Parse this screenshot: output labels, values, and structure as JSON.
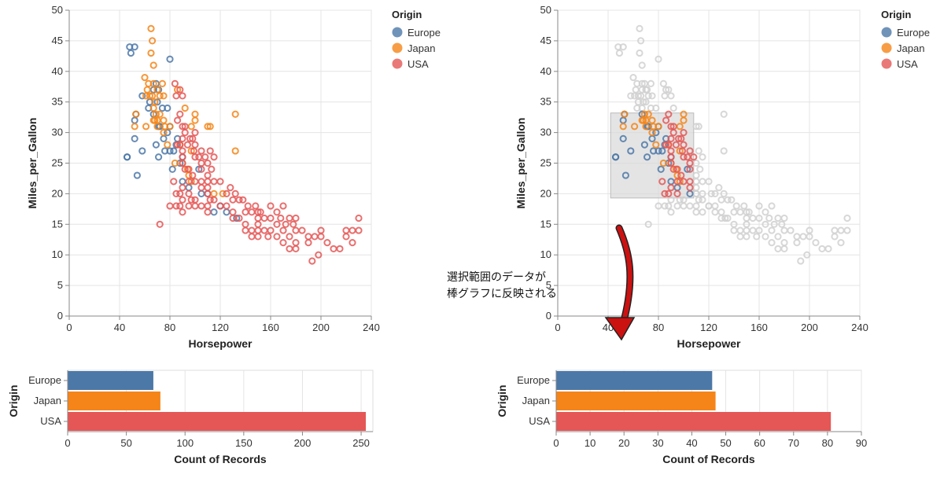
{
  "colors": {
    "Europe": "#4c78a8",
    "Japan": "#f58518",
    "USA": "#e45756",
    "unselected": "#d0d0d0",
    "selection_brush": "#d8d8d8",
    "arrow": "#cc1111"
  },
  "legend": {
    "title": "Origin",
    "items": [
      "Europe",
      "Japan",
      "USA"
    ]
  },
  "annotation": {
    "line1": "選択範囲のデータが",
    "line2": "棒グラフに反映される"
  },
  "chart_data": [
    {
      "type": "scatter",
      "panel": "left",
      "xlabel": "Horsepower",
      "ylabel": "Miles_per_Gallon",
      "xlim": [
        0,
        240
      ],
      "ylim": [
        0,
        50
      ],
      "xticks": [
        0,
        40,
        80,
        120,
        160,
        200,
        240
      ],
      "yticks": [
        0,
        5,
        10,
        15,
        20,
        25,
        30,
        35,
        40,
        45,
        50
      ],
      "marker": "open-circle",
      "grid": true,
      "legend": "top-right",
      "series": [
        {
          "name": "Europe",
          "points": [
            [
              46,
              26
            ],
            [
              48,
              44
            ],
            [
              49,
              43
            ],
            [
              52,
              29
            ],
            [
              52,
              44
            ],
            [
              53,
              33
            ],
            [
              58,
              27
            ],
            [
              63,
              34
            ],
            [
              67,
              37
            ],
            [
              69,
              38
            ],
            [
              71,
              26
            ],
            [
              71,
              31
            ],
            [
              74,
              34
            ],
            [
              75,
              29
            ],
            [
              76,
              27
            ],
            [
              78,
              30
            ],
            [
              78,
              34
            ],
            [
              80,
              42
            ],
            [
              80,
              27
            ],
            [
              82,
              24
            ],
            [
              83,
              27
            ],
            [
              86,
              29
            ],
            [
              88,
              25
            ],
            [
              90,
              22
            ],
            [
              95,
              21
            ],
            [
              103,
              24
            ],
            [
              105,
              20
            ],
            [
              110,
              20
            ],
            [
              115,
              17
            ],
            [
              120,
              18
            ],
            [
              125,
              17
            ],
            [
              133,
              16
            ],
            [
              71,
              37
            ],
            [
              54,
              23
            ],
            [
              64,
              35
            ],
            [
              69,
              28
            ],
            [
              72,
              31
            ],
            [
              80,
              31
            ],
            [
              85,
              28
            ],
            [
              90,
              26
            ],
            [
              46,
              26
            ],
            [
              52,
              32
            ],
            [
              58,
              36
            ],
            [
              67,
              33
            ],
            [
              70,
              35
            ]
          ]
        },
        {
          "name": "Japan",
          "points": [
            [
              52,
              31
            ],
            [
              53,
              33
            ],
            [
              60,
              39
            ],
            [
              61,
              31
            ],
            [
              61,
              36
            ],
            [
              63,
              38
            ],
            [
              65,
              47
            ],
            [
              65,
              43
            ],
            [
              66,
              45
            ],
            [
              66,
              36
            ],
            [
              67,
              32
            ],
            [
              67,
              41
            ],
            [
              67,
              34
            ],
            [
              67,
              38
            ],
            [
              68,
              35
            ],
            [
              68,
              32
            ],
            [
              69,
              33
            ],
            [
              70,
              31
            ],
            [
              70,
              32
            ],
            [
              72,
              33
            ],
            [
              72,
              36
            ],
            [
              75,
              30
            ],
            [
              75,
              32
            ],
            [
              75,
              36
            ],
            [
              76,
              31
            ],
            [
              78,
              28
            ],
            [
              80,
              31
            ],
            [
              84,
              25
            ],
            [
              88,
              28
            ],
            [
              90,
              25
            ],
            [
              92,
              34
            ],
            [
              95,
              23
            ],
            [
              97,
              27
            ],
            [
              97,
              22
            ],
            [
              100,
              33
            ],
            [
              100,
              32
            ],
            [
              110,
              31
            ],
            [
              112,
              31
            ],
            [
              115,
              20
            ],
            [
              122,
              20
            ],
            [
              132,
              33
            ],
            [
              132,
              27
            ],
            [
              62,
              37
            ],
            [
              64,
              36
            ],
            [
              70,
              37
            ],
            [
              74,
              38
            ],
            [
              86,
              37
            ],
            [
              94,
              24
            ],
            [
              97,
              31
            ]
          ]
        },
        {
          "name": "USA",
          "points": [
            [
              84,
              38
            ],
            [
              85,
              36
            ],
            [
              88,
              37
            ],
            [
              90,
              36
            ],
            [
              92,
              30
            ],
            [
              86,
              28
            ],
            [
              88,
              28
            ],
            [
              90,
              27
            ],
            [
              90,
              26
            ],
            [
              90,
              25
            ],
            [
              92,
              24
            ],
            [
              95,
              24
            ],
            [
              98,
              23
            ],
            [
              100,
              22
            ],
            [
              105,
              22
            ],
            [
              105,
              21
            ],
            [
              110,
              21
            ],
            [
              110,
              20
            ],
            [
              95,
              20
            ],
            [
              97,
              19
            ],
            [
              100,
              19
            ],
            [
              100,
              18
            ],
            [
              105,
              18
            ],
            [
              110,
              18
            ],
            [
              110,
              17
            ],
            [
              112,
              19
            ],
            [
              115,
              19
            ],
            [
              120,
              18
            ],
            [
              125,
              18
            ],
            [
              130,
              17
            ],
            [
              130,
              16
            ],
            [
              135,
              16
            ],
            [
              140,
              15
            ],
            [
              140,
              14
            ],
            [
              145,
              14
            ],
            [
              145,
              13
            ],
            [
              150,
              15
            ],
            [
              150,
              14
            ],
            [
              150,
              13
            ],
            [
              155,
              14
            ],
            [
              158,
              13
            ],
            [
              160,
              14
            ],
            [
              165,
              15
            ],
            [
              165,
              13
            ],
            [
              170,
              14
            ],
            [
              170,
              12
            ],
            [
              175,
              13
            ],
            [
              175,
              11
            ],
            [
              180,
              16
            ],
            [
              180,
              14
            ],
            [
              180,
              12
            ],
            [
              180,
              11
            ],
            [
              190,
              13
            ],
            [
              190,
              12
            ],
            [
              193,
              9
            ],
            [
              198,
              10
            ],
            [
              200,
              13
            ],
            [
              200,
              14
            ],
            [
              210,
              11
            ],
            [
              215,
              11
            ],
            [
              220,
              13
            ],
            [
              220,
              14
            ],
            [
              225,
              12
            ],
            [
              225,
              14
            ],
            [
              230,
              14
            ],
            [
              230,
              16
            ],
            [
              72,
              15
            ],
            [
              80,
              18
            ],
            [
              83,
              22
            ],
            [
              85,
              20
            ],
            [
              85,
              18
            ],
            [
              88,
              20
            ],
            [
              88,
              18
            ],
            [
              90,
              21
            ],
            [
              90,
              19
            ],
            [
              90,
              17
            ],
            [
              95,
              22
            ],
            [
              95,
              18
            ],
            [
              100,
              28
            ],
            [
              100,
              26
            ],
            [
              105,
              25
            ],
            [
              105,
              24
            ],
            [
              105,
              27
            ],
            [
              110,
              25
            ],
            [
              110,
              22
            ],
            [
              110,
              23
            ],
            [
              112,
              27
            ],
            [
              115,
              26
            ],
            [
              115,
              22
            ],
            [
              125,
              20
            ],
            [
              130,
              19
            ],
            [
              135,
              19
            ],
            [
              140,
              17
            ],
            [
              145,
              17
            ],
            [
              150,
              17
            ],
            [
              150,
              16
            ],
            [
              155,
              16
            ],
            [
              160,
              18
            ],
            [
              160,
              16
            ],
            [
              165,
              17
            ],
            [
              170,
              18
            ],
            [
              175,
              16
            ],
            [
              88,
              33
            ],
            [
              90,
              31
            ],
            [
              92,
              31
            ],
            [
              96,
              29
            ],
            [
              98,
              29
            ],
            [
              100,
              30
            ],
            [
              86,
              32
            ],
            [
              90,
              29
            ],
            [
              94,
              28
            ],
            [
              99,
              27
            ],
            [
              103,
              26
            ],
            [
              108,
              26
            ],
            [
              113,
              24
            ],
            [
              120,
              22
            ],
            [
              128,
              21
            ],
            [
              132,
              20
            ],
            [
              138,
              19
            ],
            [
              142,
              18
            ],
            [
              148,
              18
            ],
            [
              152,
              17
            ],
            [
              168,
              16
            ],
            [
              172,
              15
            ],
            [
              178,
              15
            ],
            [
              185,
              14
            ],
            [
              195,
              13
            ],
            [
              205,
              12
            ]
          ]
        }
      ]
    },
    {
      "type": "bar",
      "panel": "left",
      "orientation": "horizontal",
      "categories": [
        "Europe",
        "Japan",
        "USA"
      ],
      "values": [
        73,
        79,
        254
      ],
      "xlabel": "Count of Records",
      "ylabel": "Origin",
      "xlim": [
        0,
        260
      ],
      "xticks": [
        0,
        50,
        100,
        150,
        200,
        250
      ]
    },
    {
      "type": "scatter",
      "panel": "right",
      "xlabel": "Horsepower",
      "ylabel": "Miles_per_Gallon",
      "xlim": [
        0,
        240
      ],
      "ylim": [
        0,
        50
      ],
      "xticks": [
        0,
        40,
        80,
        120,
        160,
        200,
        240
      ],
      "yticks": [
        0,
        5,
        10,
        15,
        20,
        25,
        30,
        35,
        40,
        45,
        50
      ],
      "marker": "open-circle",
      "grid": true,
      "legend": "top-right",
      "selection": {
        "x": [
          42,
          108
        ],
        "y": [
          19.3,
          33.2
        ]
      },
      "series_ref": "left"
    },
    {
      "type": "bar",
      "panel": "right",
      "orientation": "horizontal",
      "categories": [
        "Europe",
        "Japan",
        "USA"
      ],
      "values": [
        46,
        47,
        81
      ],
      "xlabel": "Count of Records",
      "ylabel": "Origin",
      "xlim": [
        0,
        90
      ],
      "xticks": [
        0,
        10,
        20,
        30,
        40,
        50,
        60,
        70,
        80,
        90
      ]
    }
  ]
}
